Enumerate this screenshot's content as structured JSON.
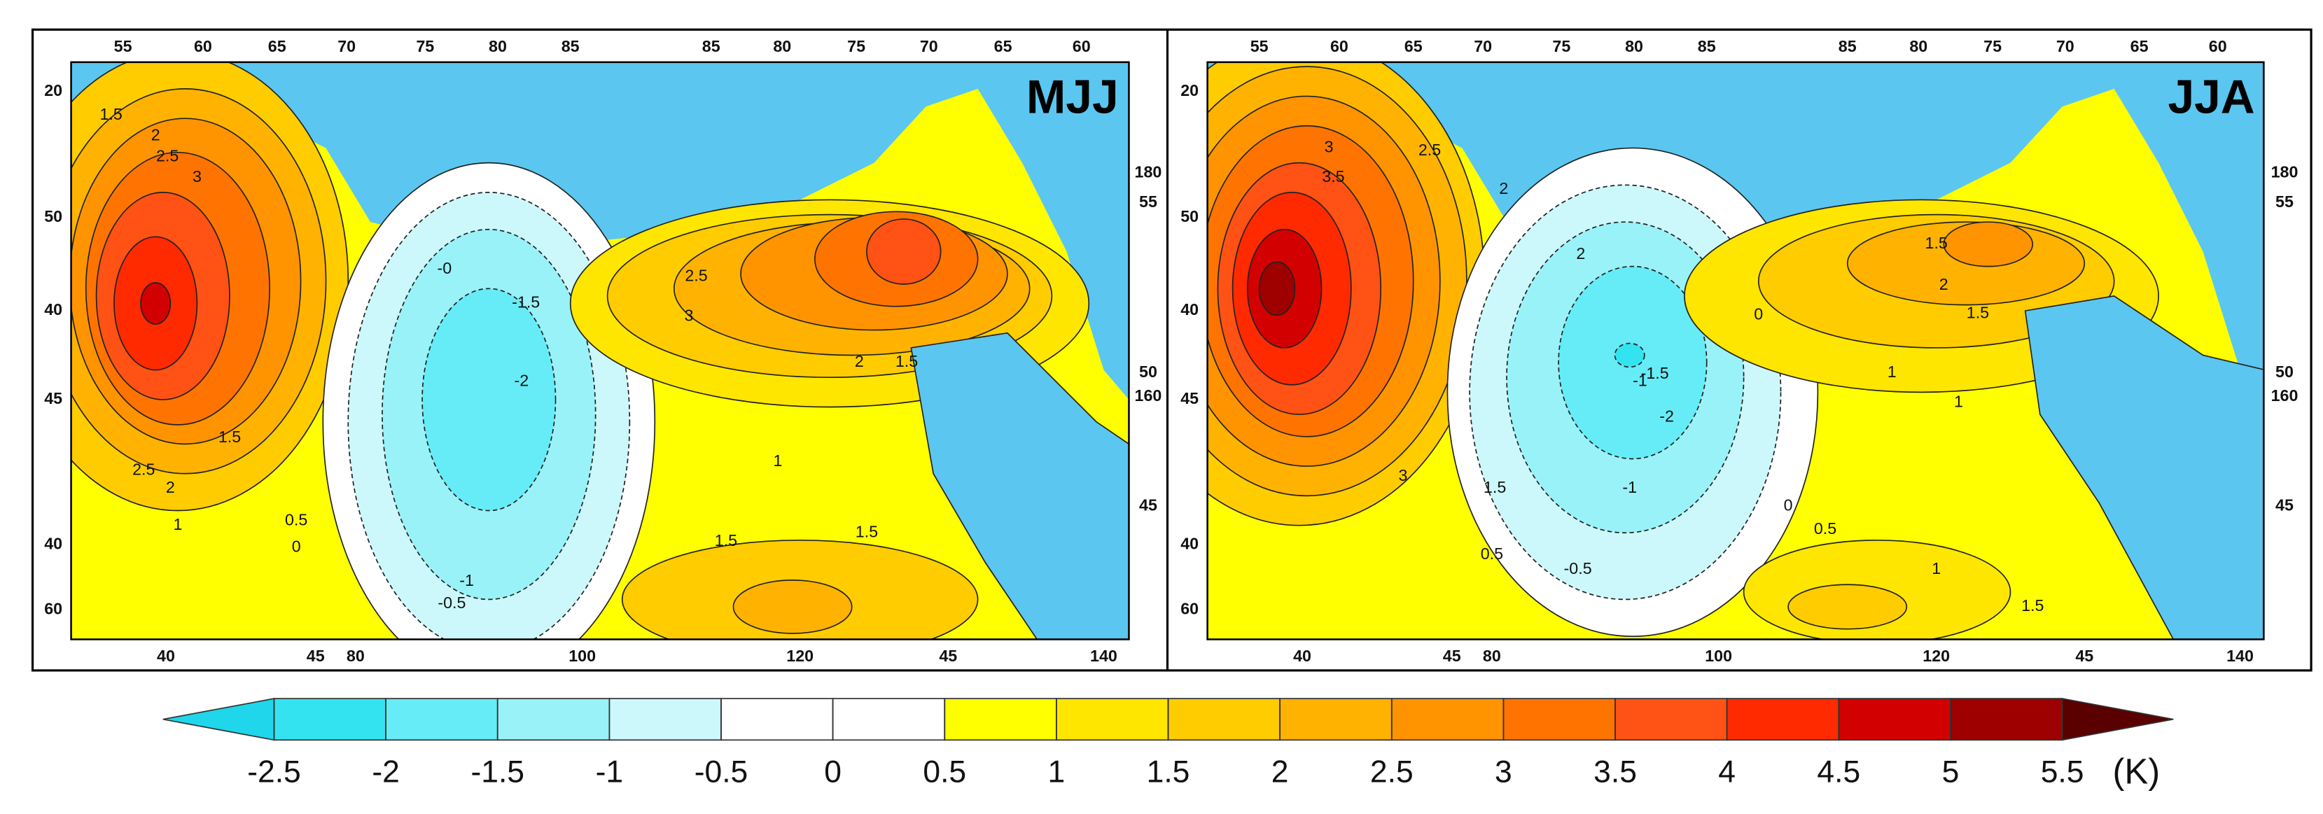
{
  "panels": [
    {
      "label": "MJJ",
      "top_labels": [
        "55",
        "60",
        "65",
        "70",
        "75",
        "80",
        "85",
        "85",
        "80",
        "75",
        "70",
        "65",
        "60"
      ],
      "left_labels": [
        "20",
        "50",
        "40",
        "45",
        "40",
        "60"
      ],
      "right_labels": [
        "180",
        "55",
        "50",
        "160",
        "45"
      ],
      "bottom_labels": [
        "40",
        "45",
        "80",
        "100",
        "120",
        "45",
        "140"
      ],
      "contour_labels": [
        "1.5",
        "2",
        "2.5",
        "3",
        "2.5",
        "1.5",
        "2",
        "1",
        "0.5",
        "0",
        "-0",
        "-0.5",
        "-1",
        "-1.5",
        "-2",
        "2.5",
        "3",
        "2",
        "1.5",
        "1",
        "1.5",
        "1.5"
      ]
    },
    {
      "label": "JJA",
      "top_labels": [
        "55",
        "60",
        "65",
        "70",
        "75",
        "80",
        "85",
        "85",
        "80",
        "75",
        "70",
        "65",
        "60"
      ],
      "left_labels": [
        "20",
        "50",
        "40",
        "45",
        "40",
        "60"
      ],
      "right_labels": [
        "180",
        "55",
        "50",
        "160",
        "45"
      ],
      "bottom_labels": [
        "40",
        "45",
        "80",
        "100",
        "120",
        "45",
        "140"
      ],
      "contour_labels": [
        "3.5",
        "3",
        "2.5",
        "2",
        "2",
        "3",
        "1.5",
        "0.5",
        "-1",
        "-1.5",
        "-2",
        "-1",
        "-0.5",
        "0",
        "0.5",
        "0",
        "1",
        "1.5",
        "2",
        "1.5",
        "1",
        "1",
        "1.5"
      ]
    }
  ],
  "colorbar": {
    "ticks": [
      -2.5,
      -2,
      -1.5,
      -1,
      -0.5,
      0,
      0.5,
      1,
      1.5,
      2,
      2.5,
      3,
      3.5,
      4,
      4.5,
      5,
      5.5
    ],
    "colors": [
      "#33e4f0",
      "#66ecf6",
      "#99f2f8",
      "#ccf8fb",
      "#ffffff",
      "#ffffff",
      "#ffff00",
      "#ffe600",
      "#ffcc00",
      "#ffb300",
      "#ff9400",
      "#ff7400",
      "#ff5214",
      "#ff2a00",
      "#d20000",
      "#9e0000"
    ],
    "under_color": "#1fd6ea",
    "over_color": "#5a0000",
    "unit": "(K)"
  }
}
